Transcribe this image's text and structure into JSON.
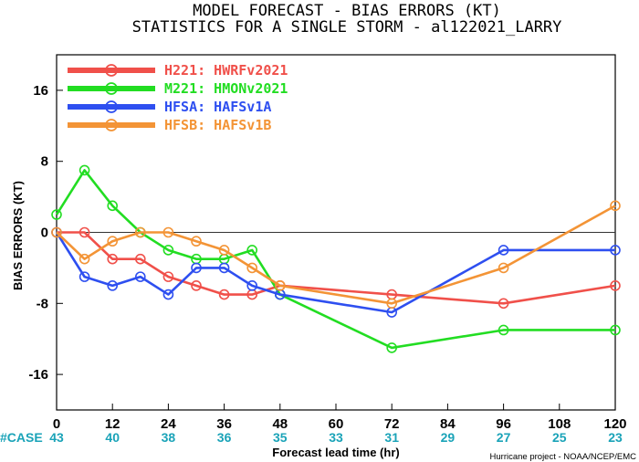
{
  "title_line1": "MODEL FORECAST - BIAS ERRORS (KT)",
  "title_line2": "STATISTICS FOR A SINGLE STORM - al122021_LARRY",
  "credit": "Hurricane project - NOAA/NCEP/EMC",
  "case_label": "#CASE",
  "case_counts": [
    {
      "x": 0,
      "n": "43"
    },
    {
      "x": 12,
      "n": "40"
    },
    {
      "x": 24,
      "n": "38"
    },
    {
      "x": 36,
      "n": "36"
    },
    {
      "x": 48,
      "n": "35"
    },
    {
      "x": 60,
      "n": "33"
    },
    {
      "x": 72,
      "n": "31"
    },
    {
      "x": 84,
      "n": "29"
    },
    {
      "x": 96,
      "n": "27"
    },
    {
      "x": 108,
      "n": "25"
    },
    {
      "x": 120,
      "n": "23"
    }
  ],
  "chart_data": {
    "type": "line",
    "title": "MODEL FORECAST - BIAS ERRORS (KT)",
    "subtitle": "STATISTICS FOR A SINGLE STORM - al122021_LARRY",
    "xlabel": "Forecast lead time (hr)",
    "ylabel": "BIAS ERRORS (KT)",
    "xlim": [
      0,
      120
    ],
    "ylim": [
      -20,
      20
    ],
    "xticks": [
      0,
      12,
      24,
      36,
      48,
      60,
      72,
      84,
      96,
      108,
      120
    ],
    "yticks": [
      -16,
      -8,
      0,
      8,
      16
    ],
    "zero_line": true,
    "legend_position": "top-left",
    "series": [
      {
        "name": "H221: HWRFv2021",
        "color": "#f0504a",
        "x": [
          0,
          6,
          12,
          18,
          24,
          30,
          36,
          42,
          48,
          72,
          96,
          120
        ],
        "y": [
          0,
          0,
          -3,
          -3,
          -5,
          -6,
          -7,
          -7,
          -6,
          -7,
          -8,
          -6
        ]
      },
      {
        "name": "M221: HMONv2021",
        "color": "#22dd22",
        "x": [
          0,
          6,
          12,
          18,
          24,
          30,
          36,
          42,
          48,
          72,
          96,
          120
        ],
        "y": [
          2,
          7,
          3,
          0,
          -2,
          -3,
          -3,
          -2,
          -7,
          -13,
          -11,
          -11
        ]
      },
      {
        "name": "HFSA: HAFSv1A",
        "color": "#2e4ff0",
        "x": [
          0,
          6,
          12,
          18,
          24,
          30,
          36,
          42,
          48,
          72,
          96,
          120
        ],
        "y": [
          0,
          -5,
          -6,
          -5,
          -7,
          -4,
          -4,
          -6,
          -7,
          -9,
          -2,
          -2
        ]
      },
      {
        "name": "HFSB: HAFSv1B",
        "color": "#f39436",
        "x": [
          0,
          6,
          12,
          18,
          24,
          30,
          36,
          42,
          48,
          72,
          96,
          120
        ],
        "y": [
          0,
          -3,
          -1,
          0,
          0,
          -1,
          -2,
          -4,
          -6,
          -8,
          -4,
          3
        ]
      }
    ]
  }
}
